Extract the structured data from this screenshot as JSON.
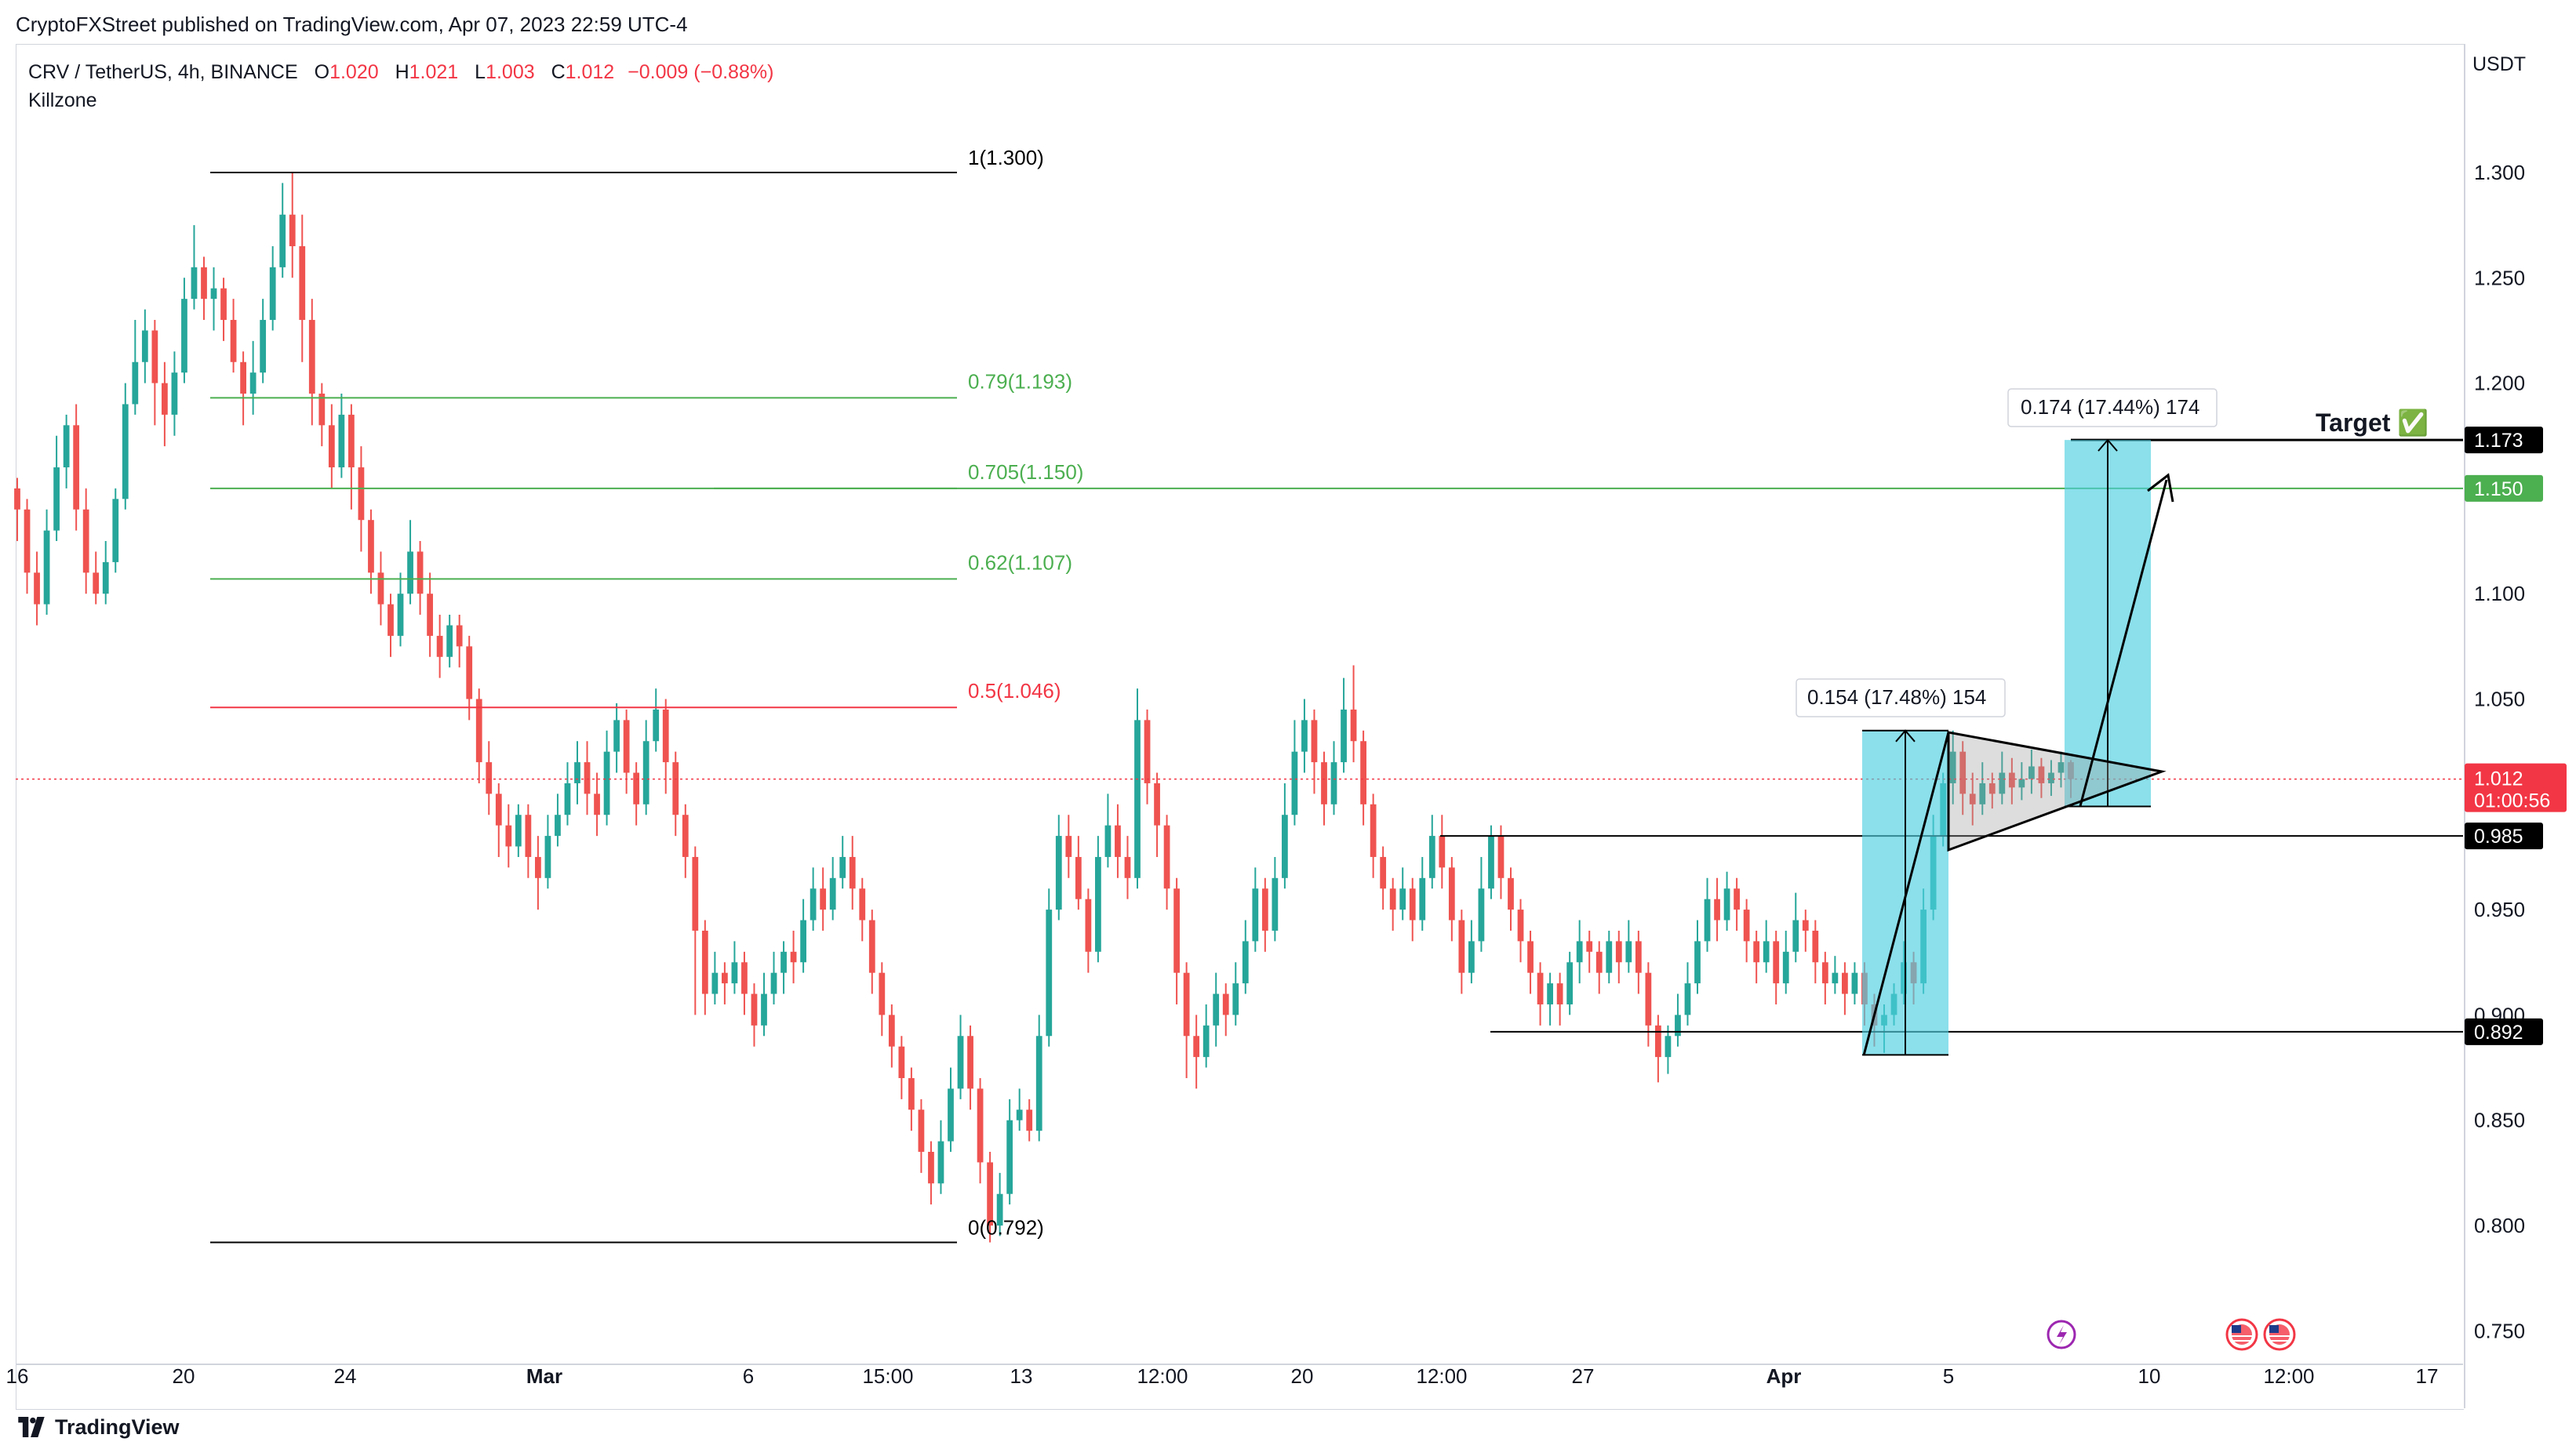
{
  "header": {
    "published": "CryptoFXStreet published on TradingView.com, Apr 07, 2023 22:59 UTC-4"
  },
  "legend": {
    "symbol": "CRV / TetherUS, 4h, BINANCE",
    "o_label": "O",
    "o_value": "1.020",
    "h_label": "H",
    "h_value": "1.021",
    "l_label": "L",
    "l_value": "1.003",
    "c_label": "C",
    "c_value": "1.012",
    "change": "−0.009 (−0.88%)",
    "indicator": "Killzone"
  },
  "footer": {
    "brand": "TradingView"
  },
  "chart_data": {
    "type": "candlestick",
    "y_axis_title": "USDT",
    "ylim": [
      0.73,
      1.34
    ],
    "y_ticks": [
      "1.300",
      "1.250",
      "1.200",
      "1.150",
      "1.100",
      "1.050",
      "1.000",
      "0.950",
      "0.900",
      "0.850",
      "0.800",
      "0.750"
    ],
    "x_ticks": [
      "16",
      "20",
      "24",
      "Mar",
      "6",
      "15:00",
      "13",
      "12:00",
      "20",
      "12:00",
      "27",
      "Apr",
      "5",
      "10",
      "12:00",
      "17"
    ],
    "current_price": {
      "value": "1.012",
      "countdown": "01:00:56",
      "color": "#f23645"
    },
    "price_labels": [
      {
        "value": "1.173",
        "color": "#000000"
      },
      {
        "value": "1.150",
        "color": "#4caf50"
      },
      {
        "value": "0.985",
        "color": "#000000"
      },
      {
        "value": "0.892",
        "color": "#000000"
      }
    ],
    "fib_levels": [
      {
        "label": "1(1.300)",
        "price": 1.3,
        "color": "#000000"
      },
      {
        "label": "0.79(1.193)",
        "price": 1.193,
        "color": "#4caf50"
      },
      {
        "label": "0.705(1.150)",
        "price": 1.15,
        "color": "#4caf50"
      },
      {
        "label": "0.62(1.107)",
        "price": 1.107,
        "color": "#4caf50"
      },
      {
        "label": "0.5(1.046)",
        "price": 1.046,
        "color": "#f23645"
      },
      {
        "label": "0(0.792)",
        "price": 0.792,
        "color": "#000000"
      }
    ],
    "measures": [
      {
        "label": "0.154 (17.48%) 154",
        "from": 0.881,
        "to": 1.035
      },
      {
        "label": "0.174 (17.44%) 174",
        "from": 0.999,
        "to": 1.173
      }
    ],
    "annotations": {
      "target_label": "Target ✅"
    },
    "support_lines": [
      0.985,
      0.892
    ],
    "candles": [
      [
        1.15,
        1.14,
        1.155,
        1.125
      ],
      [
        1.14,
        1.11,
        1.145,
        1.1
      ],
      [
        1.11,
        1.095,
        1.12,
        1.085
      ],
      [
        1.095,
        1.13,
        1.14,
        1.09
      ],
      [
        1.13,
        1.16,
        1.175,
        1.125
      ],
      [
        1.16,
        1.18,
        1.185,
        1.15
      ],
      [
        1.18,
        1.14,
        1.19,
        1.13
      ],
      [
        1.14,
        1.11,
        1.15,
        1.1
      ],
      [
        1.11,
        1.1,
        1.12,
        1.095
      ],
      [
        1.1,
        1.115,
        1.125,
        1.095
      ],
      [
        1.115,
        1.145,
        1.15,
        1.11
      ],
      [
        1.145,
        1.19,
        1.2,
        1.14
      ],
      [
        1.19,
        1.21,
        1.23,
        1.185
      ],
      [
        1.21,
        1.225,
        1.235,
        1.2
      ],
      [
        1.225,
        1.2,
        1.23,
        1.18
      ],
      [
        1.2,
        1.185,
        1.21,
        1.17
      ],
      [
        1.185,
        1.205,
        1.215,
        1.175
      ],
      [
        1.205,
        1.24,
        1.25,
        1.2
      ],
      [
        1.24,
        1.255,
        1.275,
        1.235
      ],
      [
        1.255,
        1.24,
        1.26,
        1.23
      ],
      [
        1.24,
        1.245,
        1.255,
        1.225
      ],
      [
        1.245,
        1.23,
        1.25,
        1.22
      ],
      [
        1.23,
        1.21,
        1.24,
        1.205
      ],
      [
        1.21,
        1.195,
        1.215,
        1.18
      ],
      [
        1.195,
        1.205,
        1.22,
        1.185
      ],
      [
        1.205,
        1.23,
        1.24,
        1.2
      ],
      [
        1.23,
        1.255,
        1.265,
        1.225
      ],
      [
        1.255,
        1.28,
        1.295,
        1.25
      ],
      [
        1.28,
        1.265,
        1.3,
        1.25
      ],
      [
        1.265,
        1.23,
        1.28,
        1.21
      ],
      [
        1.23,
        1.195,
        1.24,
        1.18
      ],
      [
        1.195,
        1.18,
        1.2,
        1.17
      ],
      [
        1.18,
        1.16,
        1.19,
        1.15
      ],
      [
        1.16,
        1.185,
        1.195,
        1.155
      ],
      [
        1.185,
        1.16,
        1.19,
        1.14
      ],
      [
        1.16,
        1.135,
        1.17,
        1.12
      ],
      [
        1.135,
        1.11,
        1.14,
        1.1
      ],
      [
        1.11,
        1.095,
        1.12,
        1.085
      ],
      [
        1.095,
        1.08,
        1.1,
        1.07
      ],
      [
        1.08,
        1.1,
        1.11,
        1.075
      ],
      [
        1.1,
        1.12,
        1.135,
        1.095
      ],
      [
        1.12,
        1.1,
        1.125,
        1.09
      ],
      [
        1.1,
        1.08,
        1.11,
        1.07
      ],
      [
        1.08,
        1.07,
        1.09,
        1.06
      ],
      [
        1.07,
        1.085,
        1.09,
        1.065
      ],
      [
        1.085,
        1.075,
        1.09,
        1.065
      ],
      [
        1.075,
        1.05,
        1.08,
        1.04
      ],
      [
        1.05,
        1.02,
        1.055,
        1.01
      ],
      [
        1.02,
        1.005,
        1.03,
        0.995
      ],
      [
        1.005,
        0.99,
        1.01,
        0.975
      ],
      [
        0.99,
        0.98,
        1.0,
        0.97
      ],
      [
        0.98,
        0.995,
        1.0,
        0.975
      ],
      [
        0.995,
        0.975,
        1.0,
        0.965
      ],
      [
        0.975,
        0.965,
        0.985,
        0.95
      ],
      [
        0.965,
        0.985,
        0.995,
        0.96
      ],
      [
        0.985,
        0.995,
        1.005,
        0.98
      ],
      [
        0.995,
        1.01,
        1.02,
        0.99
      ],
      [
        1.01,
        1.02,
        1.03,
        1.0
      ],
      [
        1.02,
        1.005,
        1.03,
        0.995
      ],
      [
        1.005,
        0.995,
        1.015,
        0.985
      ],
      [
        0.995,
        1.025,
        1.035,
        0.99
      ],
      [
        1.025,
        1.04,
        1.048,
        1.015
      ],
      [
        1.04,
        1.015,
        1.045,
        1.005
      ],
      [
        1.015,
        1.0,
        1.02,
        0.99
      ],
      [
        1.0,
        1.03,
        1.04,
        0.995
      ],
      [
        1.03,
        1.045,
        1.055,
        1.025
      ],
      [
        1.045,
        1.02,
        1.05,
        1.005
      ],
      [
        1.02,
        0.995,
        1.025,
        0.985
      ],
      [
        0.995,
        0.975,
        1.0,
        0.965
      ],
      [
        0.975,
        0.94,
        0.98,
        0.9
      ],
      [
        0.94,
        0.91,
        0.945,
        0.9
      ],
      [
        0.91,
        0.92,
        0.93,
        0.905
      ],
      [
        0.92,
        0.915,
        0.925,
        0.905
      ],
      [
        0.915,
        0.925,
        0.935,
        0.91
      ],
      [
        0.925,
        0.91,
        0.93,
        0.9
      ],
      [
        0.91,
        0.895,
        0.915,
        0.885
      ],
      [
        0.895,
        0.91,
        0.92,
        0.89
      ],
      [
        0.91,
        0.92,
        0.93,
        0.905
      ],
      [
        0.92,
        0.93,
        0.935,
        0.91
      ],
      [
        0.93,
        0.925,
        0.94,
        0.915
      ],
      [
        0.925,
        0.945,
        0.955,
        0.92
      ],
      [
        0.945,
        0.96,
        0.97,
        0.94
      ],
      [
        0.96,
        0.95,
        0.97,
        0.94
      ],
      [
        0.95,
        0.965,
        0.975,
        0.945
      ],
      [
        0.965,
        0.975,
        0.985,
        0.96
      ],
      [
        0.975,
        0.96,
        0.985,
        0.95
      ],
      [
        0.96,
        0.945,
        0.965,
        0.935
      ],
      [
        0.945,
        0.92,
        0.95,
        0.91
      ],
      [
        0.92,
        0.9,
        0.925,
        0.89
      ],
      [
        0.9,
        0.885,
        0.905,
        0.875
      ],
      [
        0.885,
        0.87,
        0.89,
        0.86
      ],
      [
        0.87,
        0.855,
        0.875,
        0.845
      ],
      [
        0.855,
        0.835,
        0.86,
        0.825
      ],
      [
        0.835,
        0.82,
        0.84,
        0.81
      ],
      [
        0.82,
        0.84,
        0.85,
        0.815
      ],
      [
        0.84,
        0.865,
        0.875,
        0.835
      ],
      [
        0.865,
        0.89,
        0.9,
        0.86
      ],
      [
        0.89,
        0.865,
        0.895,
        0.855
      ],
      [
        0.865,
        0.83,
        0.87,
        0.82
      ],
      [
        0.83,
        0.8,
        0.835,
        0.792
      ],
      [
        0.8,
        0.815,
        0.825,
        0.795
      ],
      [
        0.815,
        0.85,
        0.86,
        0.81
      ],
      [
        0.85,
        0.855,
        0.865,
        0.845
      ],
      [
        0.855,
        0.845,
        0.86,
        0.84
      ],
      [
        0.845,
        0.89,
        0.9,
        0.84
      ],
      [
        0.89,
        0.95,
        0.96,
        0.885
      ],
      [
        0.95,
        0.985,
        0.995,
        0.945
      ],
      [
        0.985,
        0.975,
        0.995,
        0.965
      ],
      [
        0.975,
        0.955,
        0.985,
        0.95
      ],
      [
        0.955,
        0.93,
        0.96,
        0.92
      ],
      [
        0.93,
        0.975,
        0.985,
        0.925
      ],
      [
        0.975,
        0.99,
        1.005,
        0.97
      ],
      [
        0.99,
        0.975,
        1.0,
        0.965
      ],
      [
        0.975,
        0.965,
        0.985,
        0.955
      ],
      [
        0.965,
        1.04,
        1.055,
        0.96
      ],
      [
        1.04,
        1.01,
        1.045,
        1.0
      ],
      [
        1.01,
        0.99,
        1.015,
        0.975
      ],
      [
        0.99,
        0.96,
        0.995,
        0.95
      ],
      [
        0.96,
        0.92,
        0.965,
        0.905
      ],
      [
        0.92,
        0.89,
        0.925,
        0.87
      ],
      [
        0.89,
        0.88,
        0.9,
        0.865
      ],
      [
        0.88,
        0.895,
        0.905,
        0.875
      ],
      [
        0.895,
        0.91,
        0.92,
        0.885
      ],
      [
        0.91,
        0.9,
        0.915,
        0.89
      ],
      [
        0.9,
        0.915,
        0.925,
        0.895
      ],
      [
        0.915,
        0.935,
        0.945,
        0.91
      ],
      [
        0.935,
        0.96,
        0.97,
        0.93
      ],
      [
        0.96,
        0.94,
        0.965,
        0.93
      ],
      [
        0.94,
        0.965,
        0.975,
        0.935
      ],
      [
        0.965,
        0.995,
        1.01,
        0.96
      ],
      [
        0.995,
        1.025,
        1.04,
        0.99
      ],
      [
        1.025,
        1.04,
        1.05,
        1.015
      ],
      [
        1.04,
        1.02,
        1.045,
        1.005
      ],
      [
        1.02,
        1.0,
        1.025,
        0.99
      ],
      [
        1.0,
        1.02,
        1.03,
        0.995
      ],
      [
        1.02,
        1.045,
        1.06,
        1.015
      ],
      [
        1.045,
        1.03,
        1.066,
        1.02
      ],
      [
        1.03,
        1.0,
        1.035,
        0.99
      ],
      [
        1.0,
        0.975,
        1.005,
        0.965
      ],
      [
        0.975,
        0.96,
        0.98,
        0.95
      ],
      [
        0.96,
        0.95,
        0.965,
        0.94
      ],
      [
        0.95,
        0.96,
        0.97,
        0.945
      ],
      [
        0.96,
        0.945,
        0.965,
        0.935
      ],
      [
        0.945,
        0.965,
        0.975,
        0.94
      ],
      [
        0.965,
        0.985,
        0.995,
        0.96
      ],
      [
        0.985,
        0.97,
        0.995,
        0.96
      ],
      [
        0.97,
        0.945,
        0.975,
        0.935
      ],
      [
        0.945,
        0.92,
        0.95,
        0.91
      ],
      [
        0.92,
        0.935,
        0.945,
        0.915
      ],
      [
        0.935,
        0.96,
        0.975,
        0.93
      ],
      [
        0.96,
        0.985,
        0.99,
        0.955
      ],
      [
        0.985,
        0.965,
        0.99,
        0.955
      ],
      [
        0.965,
        0.95,
        0.97,
        0.94
      ],
      [
        0.95,
        0.935,
        0.955,
        0.925
      ],
      [
        0.935,
        0.92,
        0.94,
        0.91
      ],
      [
        0.92,
        0.905,
        0.925,
        0.895
      ],
      [
        0.905,
        0.915,
        0.92,
        0.895
      ],
      [
        0.915,
        0.905,
        0.92,
        0.895
      ],
      [
        0.905,
        0.925,
        0.93,
        0.9
      ],
      [
        0.925,
        0.935,
        0.945,
        0.915
      ],
      [
        0.935,
        0.93,
        0.94,
        0.92
      ],
      [
        0.93,
        0.92,
        0.935,
        0.91
      ],
      [
        0.92,
        0.935,
        0.94,
        0.915
      ],
      [
        0.935,
        0.925,
        0.94,
        0.915
      ],
      [
        0.925,
        0.935,
        0.945,
        0.92
      ],
      [
        0.935,
        0.92,
        0.94,
        0.91
      ],
      [
        0.92,
        0.895,
        0.925,
        0.885
      ],
      [
        0.895,
        0.88,
        0.9,
        0.868
      ],
      [
        0.88,
        0.89,
        0.895,
        0.872
      ],
      [
        0.89,
        0.9,
        0.91,
        0.885
      ],
      [
        0.9,
        0.915,
        0.925,
        0.895
      ],
      [
        0.915,
        0.935,
        0.945,
        0.91
      ],
      [
        0.935,
        0.955,
        0.965,
        0.93
      ],
      [
        0.955,
        0.945,
        0.965,
        0.935
      ],
      [
        0.945,
        0.96,
        0.968,
        0.94
      ],
      [
        0.96,
        0.95,
        0.965,
        0.94
      ],
      [
        0.95,
        0.935,
        0.955,
        0.925
      ],
      [
        0.935,
        0.925,
        0.94,
        0.915
      ],
      [
        0.925,
        0.935,
        0.945,
        0.92
      ],
      [
        0.935,
        0.915,
        0.94,
        0.905
      ],
      [
        0.915,
        0.93,
        0.94,
        0.91
      ],
      [
        0.93,
        0.945,
        0.958,
        0.925
      ],
      [
        0.945,
        0.94,
        0.95,
        0.93
      ],
      [
        0.94,
        0.925,
        0.945,
        0.915
      ],
      [
        0.925,
        0.915,
        0.93,
        0.905
      ],
      [
        0.915,
        0.92,
        0.928,
        0.91
      ],
      [
        0.92,
        0.91,
        0.925,
        0.9
      ],
      [
        0.91,
        0.92,
        0.925,
        0.905
      ],
      [
        0.92,
        0.905,
        0.925,
        0.895
      ],
      [
        0.905,
        0.895,
        0.91,
        0.885
      ],
      [
        0.895,
        0.9,
        0.905,
        0.882
      ],
      [
        0.9,
        0.91,
        0.915,
        0.895
      ],
      [
        0.91,
        0.925,
        0.935,
        0.905
      ],
      [
        0.925,
        0.915,
        0.93,
        0.905
      ],
      [
        0.915,
        0.95,
        0.96,
        0.91
      ],
      [
        0.95,
        0.985,
        0.995,
        0.945
      ],
      [
        0.985,
        1.01,
        1.015,
        0.98
      ],
      [
        1.01,
        1.025,
        1.035,
        1.0
      ],
      [
        1.025,
        1.005,
        1.03,
        0.995
      ],
      [
        1.005,
        1.0,
        1.015,
        0.99
      ],
      [
        1.0,
        1.01,
        1.02,
        0.995
      ],
      [
        1.01,
        1.005,
        1.015,
        0.998
      ],
      [
        1.005,
        1.015,
        1.025,
        1.0
      ],
      [
        1.015,
        1.008,
        1.022,
        1.0
      ],
      [
        1.008,
        1.012,
        1.02,
        1.002
      ],
      [
        1.012,
        1.018,
        1.026,
        1.005
      ],
      [
        1.018,
        1.01,
        1.022,
        1.003
      ],
      [
        1.01,
        1.015,
        1.021,
        1.004
      ],
      [
        1.015,
        1.02,
        1.025,
        1.008
      ],
      [
        1.02,
        1.012,
        1.021,
        1.003
      ]
    ]
  }
}
